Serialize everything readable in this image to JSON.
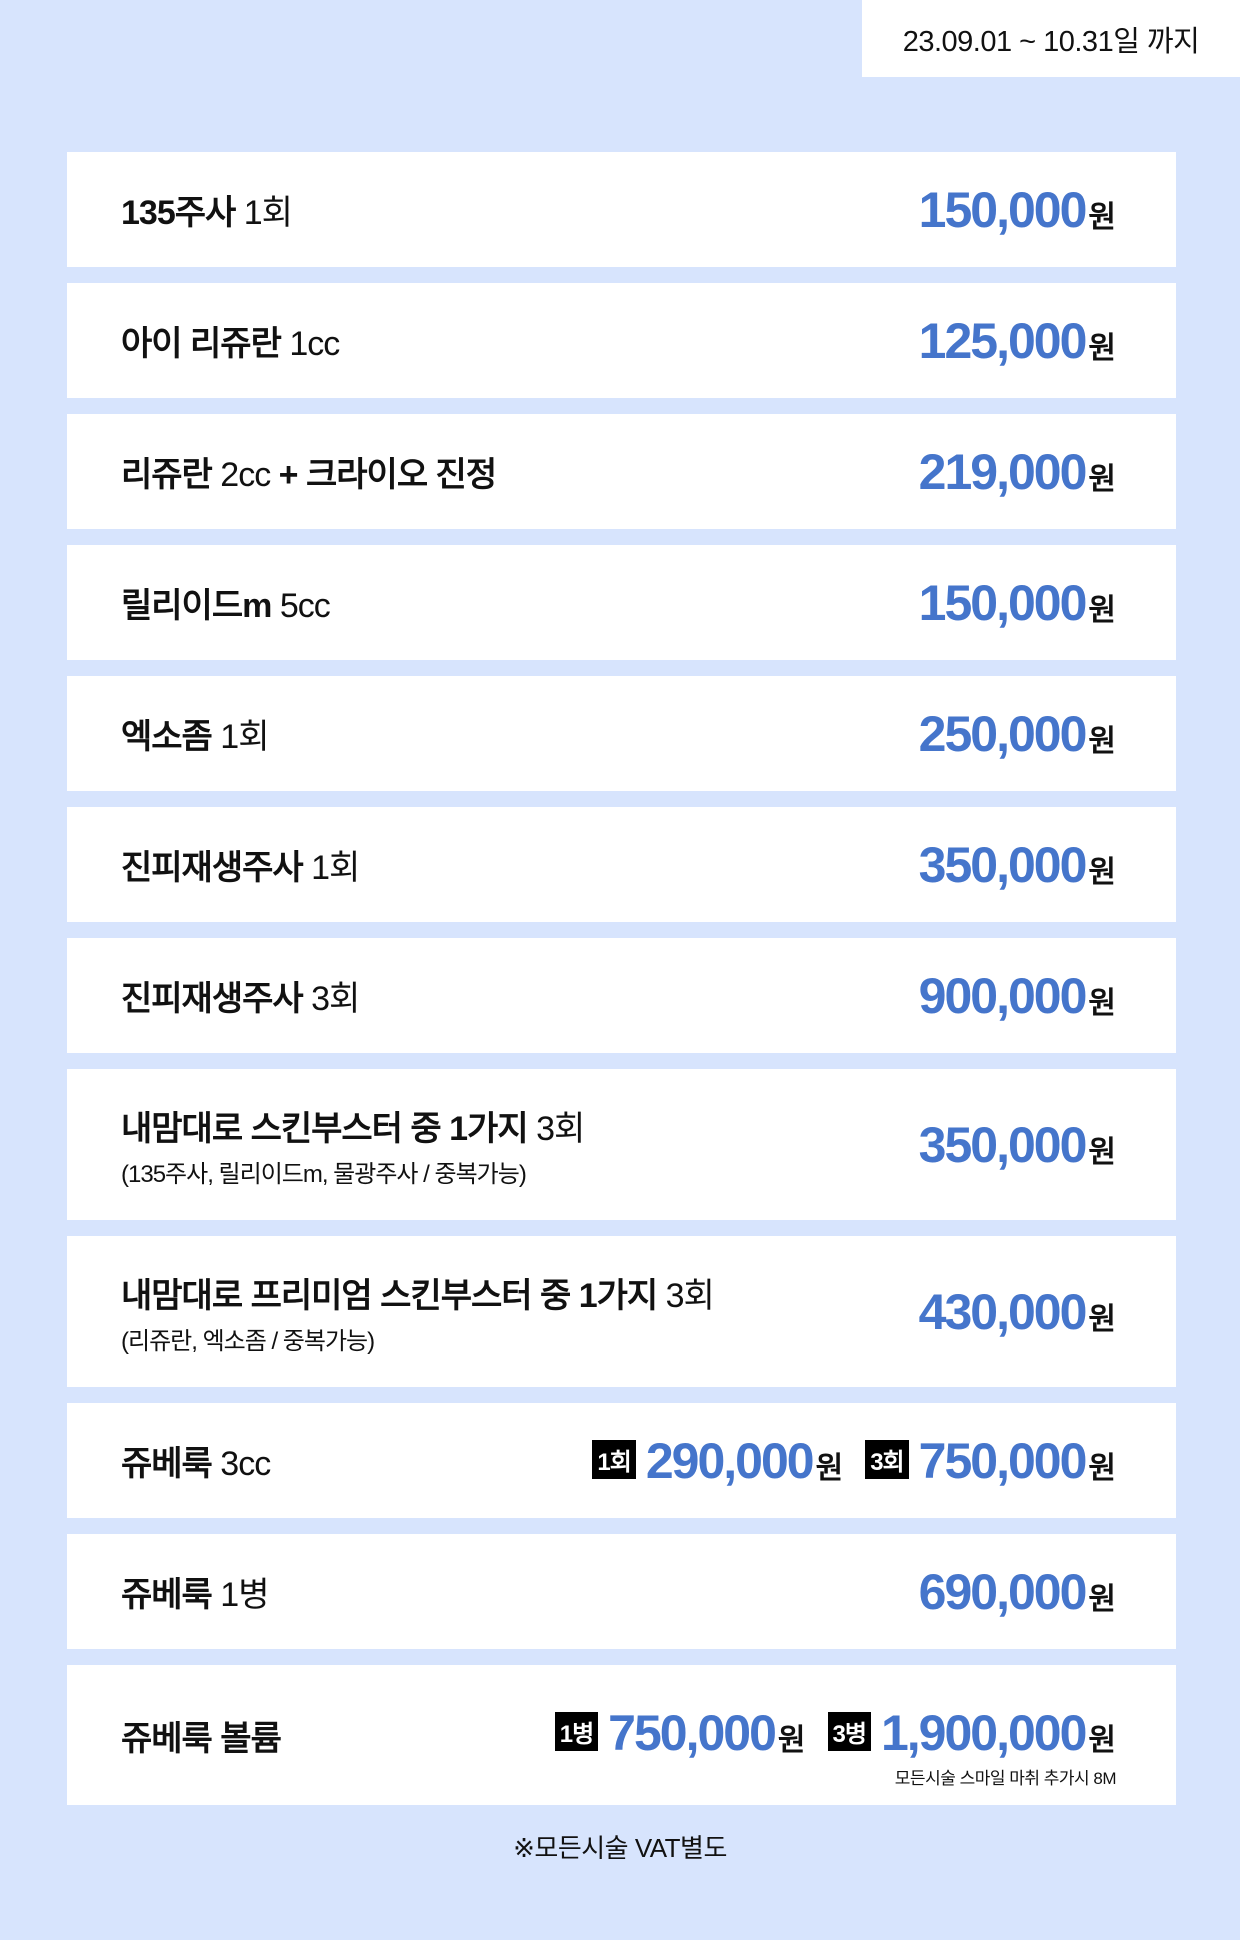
{
  "period": "23.09.01 ~ 10.31일 까지",
  "currency": "원",
  "price_color": "#4575cb",
  "items": [
    {
      "name": "135주사",
      "qty": "1회",
      "price": "150,000"
    },
    {
      "name": "아이 리쥬란",
      "qty": "1cc",
      "price": "125,000"
    },
    {
      "name": "리쥬란",
      "qty": "2cc",
      "name2": "+ 크라이오 진정",
      "price": "219,000"
    },
    {
      "name": "릴리이드m",
      "qty": "5cc",
      "price": "150,000"
    },
    {
      "name": "엑소좀",
      "qty": "1회",
      "price": "250,000"
    },
    {
      "name": "진피재생주사",
      "qty": "1회",
      "price": "350,000"
    },
    {
      "name": "진피재생주사",
      "qty": "3회",
      "price": "900,000"
    },
    {
      "name": "내맘대로 스킨부스터 중 1가지",
      "qty": "3회",
      "sub": "(135주사, 릴리이드m, 물광주사 / 중복가능)",
      "price": "350,000"
    },
    {
      "name": "내맘대로 프리미엄 스킨부스터 중 1가지",
      "qty": "3회",
      "sub": "(리쥬란, 엑소좀 / 중복가능)",
      "price": "430,000"
    },
    {
      "name": "쥬베룩",
      "qty": "3cc",
      "options": [
        {
          "tag": "1회",
          "price": "290,000"
        },
        {
          "tag": "3회",
          "price": "750,000"
        }
      ]
    },
    {
      "name": "쥬베룩",
      "qty": "1병",
      "price": "690,000"
    },
    {
      "name": "쥬베룩 볼륨",
      "options": [
        {
          "tag": "1병",
          "price": "750,000"
        },
        {
          "tag": "3병",
          "price": "1,900,000"
        }
      ],
      "note": "모든시술 스마일 마취 추가시 8M"
    }
  ],
  "footer": "※모든시술 VAT별도"
}
